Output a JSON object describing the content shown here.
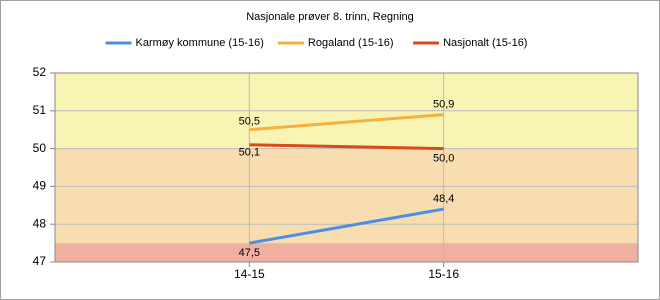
{
  "chart_data": {
    "type": "line",
    "title": "Nasjonale prøver 8. trinn, Regning",
    "categories": [
      "14-15",
      "15-16"
    ],
    "series": [
      {
        "name": "Karmøy kommune (15-16)",
        "color": "#4a8fe2",
        "values": [
          47.5,
          48.4
        ],
        "value_labels": [
          "47,5",
          "48,4"
        ]
      },
      {
        "name": "Rogaland (15-16)",
        "color": "#f5b040",
        "values": [
          50.5,
          50.9
        ],
        "value_labels": [
          "50,5",
          "50,9"
        ]
      },
      {
        "name": "Nasjonalt (15-16)",
        "color": "#d94a1a",
        "values": [
          50.1,
          50.0
        ],
        "value_labels": [
          "50,1",
          "50,0"
        ]
      }
    ],
    "bands": [
      {
        "from": 47,
        "to": 47.5,
        "color": "#f0b0a0"
      },
      {
        "from": 47.5,
        "to": 50,
        "color": "#f8ddb0"
      },
      {
        "from": 50,
        "to": 52,
        "color": "#f8f4b4"
      }
    ],
    "ylim": [
      47,
      52
    ],
    "yticks": [
      47,
      48,
      49,
      50,
      51,
      52
    ],
    "grid": true
  }
}
